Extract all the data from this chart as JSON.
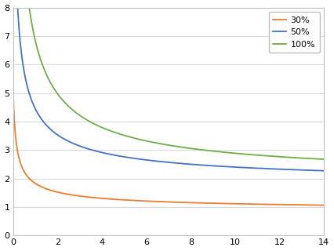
{
  "title": "",
  "xlabel": "",
  "ylabel": "",
  "xlim": [
    0,
    14
  ],
  "ylim": [
    0,
    8
  ],
  "xticks": [
    0,
    2,
    4,
    6,
    8,
    10,
    12,
    14
  ],
  "yticks": [
    0,
    1,
    2,
    3,
    4,
    5,
    6,
    7,
    8
  ],
  "series": [
    {
      "label": "30%",
      "color": "#ED7D31",
      "c": 0.82,
      "a": 1.05,
      "d": 0.08,
      "b": 0.55
    },
    {
      "label": "50%",
      "color": "#4472C4",
      "c": 1.72,
      "a": 2.85,
      "d": 0.08,
      "b": 0.62
    },
    {
      "label": "100%",
      "color": "#70AD47",
      "c": 1.9,
      "a": 5.2,
      "d": 0.08,
      "b": 0.72
    }
  ],
  "legend_loc": "upper right",
  "background_color": "#ffffff",
  "grid_color": "#d9d9d9",
  "spine_color": "#bfbfbf"
}
